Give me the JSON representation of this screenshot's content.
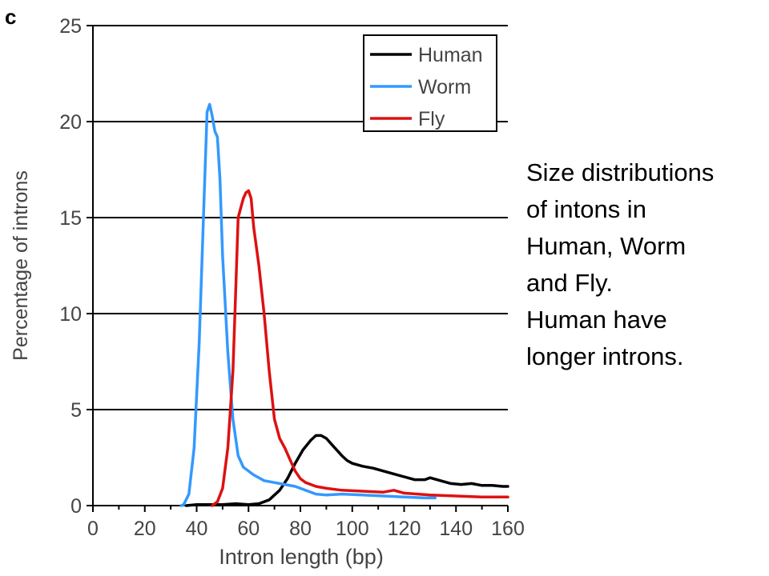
{
  "panel_label": "c",
  "caption": {
    "lines": [
      "Size distributions",
      "of intons in",
      "Human, Worm",
      "and Fly.",
      "Human have",
      "longer introns."
    ]
  },
  "chart_data": {
    "type": "line",
    "title": "",
    "xlabel": "Intron length (bp)",
    "ylabel": "Percentage of introns",
    "xlim": [
      0,
      160
    ],
    "ylim": [
      0,
      25
    ],
    "xticks": [
      0,
      20,
      40,
      60,
      80,
      100,
      120,
      140,
      160
    ],
    "yticks": [
      0,
      5,
      10,
      15,
      20,
      25
    ],
    "grid": "horizontal",
    "legend_position": "top-right",
    "series": [
      {
        "name": "Human",
        "color": "#000000",
        "points": [
          [
            36,
            0
          ],
          [
            40,
            0.05
          ],
          [
            50,
            0.05
          ],
          [
            55,
            0.1
          ],
          [
            60,
            0.05
          ],
          [
            64,
            0.1
          ],
          [
            68,
            0.3
          ],
          [
            72,
            0.8
          ],
          [
            75,
            1.4
          ],
          [
            78,
            2.2
          ],
          [
            81,
            2.9
          ],
          [
            84,
            3.4
          ],
          [
            86,
            3.65
          ],
          [
            88,
            3.65
          ],
          [
            90,
            3.5
          ],
          [
            92,
            3.2
          ],
          [
            94,
            2.9
          ],
          [
            96,
            2.6
          ],
          [
            98,
            2.35
          ],
          [
            100,
            2.2
          ],
          [
            104,
            2.05
          ],
          [
            108,
            1.95
          ],
          [
            112,
            1.8
          ],
          [
            116,
            1.65
          ],
          [
            120,
            1.5
          ],
          [
            124,
            1.35
          ],
          [
            128,
            1.35
          ],
          [
            130,
            1.45
          ],
          [
            134,
            1.3
          ],
          [
            138,
            1.15
          ],
          [
            142,
            1.1
          ],
          [
            146,
            1.15
          ],
          [
            150,
            1.05
          ],
          [
            154,
            1.05
          ],
          [
            158,
            1.0
          ],
          [
            160,
            1.0
          ]
        ]
      },
      {
        "name": "Worm",
        "color": "#3399ff",
        "points": [
          [
            34,
            0
          ],
          [
            35,
            0.05
          ],
          [
            37,
            0.6
          ],
          [
            39,
            3.0
          ],
          [
            41,
            8.5
          ],
          [
            43,
            16.5
          ],
          [
            44,
            20.5
          ],
          [
            45,
            20.9
          ],
          [
            46,
            20.3
          ],
          [
            47,
            19.5
          ],
          [
            48,
            19.2
          ],
          [
            49,
            17.0
          ],
          [
            50,
            13.0
          ],
          [
            52,
            8.0
          ],
          [
            54,
            4.5
          ],
          [
            56,
            2.6
          ],
          [
            58,
            2.0
          ],
          [
            62,
            1.6
          ],
          [
            66,
            1.3
          ],
          [
            70,
            1.2
          ],
          [
            74,
            1.1
          ],
          [
            78,
            1.0
          ],
          [
            82,
            0.8
          ],
          [
            86,
            0.6
          ],
          [
            90,
            0.55
          ],
          [
            96,
            0.6
          ],
          [
            104,
            0.55
          ],
          [
            112,
            0.5
          ],
          [
            120,
            0.45
          ],
          [
            128,
            0.4
          ],
          [
            132,
            0.4
          ]
        ]
      },
      {
        "name": "Fly",
        "color": "#dd1111",
        "points": [
          [
            46,
            0
          ],
          [
            48,
            0.2
          ],
          [
            50,
            0.9
          ],
          [
            52,
            3.0
          ],
          [
            54,
            7.0
          ],
          [
            55,
            11.0
          ],
          [
            56,
            15.0
          ],
          [
            57,
            15.5
          ],
          [
            58,
            16.0
          ],
          [
            59,
            16.3
          ],
          [
            60,
            16.4
          ],
          [
            61,
            16.0
          ],
          [
            62,
            14.5
          ],
          [
            64,
            12.5
          ],
          [
            66,
            10.0
          ],
          [
            68,
            7.0
          ],
          [
            70,
            4.5
          ],
          [
            72,
            3.5
          ],
          [
            74,
            3.0
          ],
          [
            76,
            2.4
          ],
          [
            78,
            1.8
          ],
          [
            80,
            1.4
          ],
          [
            82,
            1.2
          ],
          [
            86,
            1.0
          ],
          [
            90,
            0.9
          ],
          [
            96,
            0.8
          ],
          [
            104,
            0.75
          ],
          [
            112,
            0.7
          ],
          [
            116,
            0.8
          ],
          [
            120,
            0.65
          ],
          [
            130,
            0.55
          ],
          [
            140,
            0.5
          ],
          [
            150,
            0.45
          ],
          [
            160,
            0.45
          ]
        ]
      }
    ]
  }
}
